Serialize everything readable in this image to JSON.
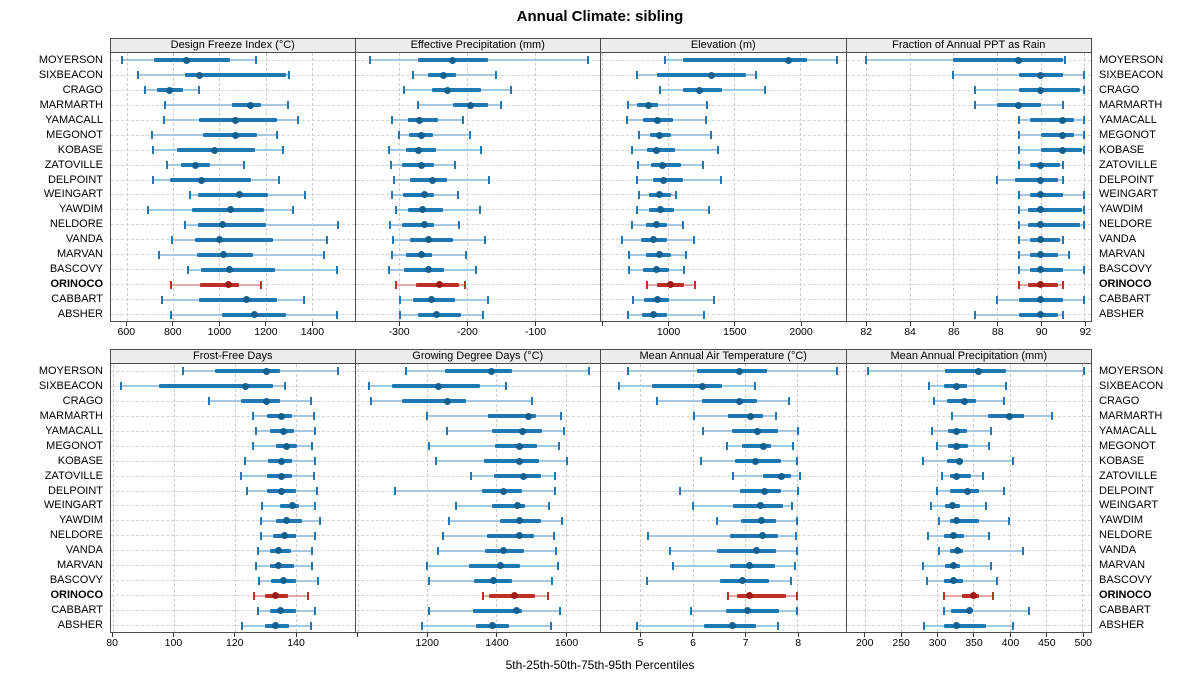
{
  "title": "Annual Climate: sibling",
  "caption": "5th-25th-50th-75th-95th Percentiles",
  "colors": {
    "blue_line": "#a3c8e0",
    "blue_bar": "#1f77b4",
    "blue_cap": "#1f77b4",
    "blue_dot": "#13608f",
    "red_line": "#e2a8a2",
    "red_bar": "#bd3029",
    "red_cap": "#bd3029",
    "red_dot": "#9c1c15",
    "header_bg": "#ececec",
    "panel_border": "#4d4d4d",
    "grid": "#cbcbcb"
  },
  "chart_data": {
    "type": "scatter",
    "variant": "percentile-interval-trellis",
    "percentiles": [
      "5th",
      "25th",
      "50th",
      "75th",
      "95th"
    ],
    "stations": [
      "MOYERSON",
      "SIXBEACON",
      "CRAGO",
      "MARMARTH",
      "YAMACALL",
      "MEGONOT",
      "KOBASE",
      "ZATOVILLE",
      "DELPOINT",
      "WEINGART",
      "YAWDIM",
      "NELDORE",
      "VANDA",
      "MARVAN",
      "BASCOVY",
      "ORINOCO",
      "CABBART",
      "ABSHER"
    ],
    "highlight_station": "ORINOCO",
    "panels": [
      {
        "title": "Design Freeze Index (°C)",
        "xlim": [
          530,
          1585
        ],
        "ticks": [
          600,
          800,
          1000,
          1200,
          1400
        ],
        "grid_ticks": [
          600,
          800,
          1000,
          1200,
          1400
        ],
        "rows": [
          [
            577,
            717,
            857,
            1046,
            1157
          ],
          [
            649,
            850,
            913,
            1289,
            1300
          ],
          [
            679,
            729,
            784,
            841,
            910
          ],
          [
            763,
            1053,
            1135,
            1180,
            1298
          ],
          [
            759,
            911,
            1070,
            1251,
            1340
          ],
          [
            706,
            928,
            1071,
            1162,
            1248
          ],
          [
            713,
            815,
            978,
            1155,
            1277
          ],
          [
            774,
            834,
            894,
            961,
            1107
          ],
          [
            710,
            784,
            923,
            1138,
            1258
          ],
          [
            872,
            909,
            1088,
            1212,
            1372
          ],
          [
            692,
            880,
            1049,
            1195,
            1319
          ],
          [
            851,
            909,
            1015,
            1202,
            1513
          ],
          [
            795,
            893,
            999,
            1233,
            1468
          ],
          [
            737,
            904,
            1018,
            1145,
            1452
          ],
          [
            862,
            921,
            1042,
            1240,
            1510
          ],
          [
            788,
            914,
            1039,
            1084,
            1178
          ],
          [
            749,
            911,
            1119,
            1251,
            1367
          ],
          [
            791,
            1011,
            1152,
            1287,
            1510
          ]
        ]
      },
      {
        "title": "Effective Precipitation (mm)",
        "xlim": [
          -364,
          -4
        ],
        "ticks": [
          -300,
          -200,
          -100
        ],
        "grid_ticks": [
          -300,
          -200,
          -100
        ],
        "rows": [
          [
            -343,
            -272,
            -221,
            -169,
            -22
          ],
          [
            -279,
            -257,
            -235,
            -216,
            -157
          ],
          [
            -292,
            -252,
            -228,
            -179,
            -135
          ],
          [
            -272,
            -221,
            -194,
            -169,
            -150
          ],
          [
            -310,
            -287,
            -270,
            -243,
            -206
          ],
          [
            -300,
            -285,
            -267,
            -250,
            -196
          ],
          [
            -314,
            -290,
            -271,
            -245,
            -179
          ],
          [
            -311,
            -295,
            -267,
            -249,
            -217
          ],
          [
            -308,
            -284,
            -250,
            -230,
            -167
          ],
          [
            -310,
            -294,
            -262,
            -248,
            -213
          ],
          [
            -305,
            -287,
            -266,
            -235,
            -181
          ],
          [
            -313,
            -295,
            -262,
            -248,
            -211
          ],
          [
            -309,
            -284,
            -257,
            -221,
            -174
          ],
          [
            -310,
            -290,
            -267,
            -252,
            -201
          ],
          [
            -315,
            -293,
            -257,
            -233,
            -186
          ],
          [
            -304,
            -275,
            -240,
            -211,
            -203
          ],
          [
            -299,
            -279,
            -252,
            -218,
            -169
          ],
          [
            -299,
            -272,
            -244,
            -208,
            -176
          ]
        ]
      },
      {
        "title": "Elevation (m)",
        "xlim": [
          490,
          2343
        ],
        "ticks": [
          1000,
          1500,
          2000
        ],
        "grid_ticks": [
          500,
          1000,
          1500,
          2000
        ],
        "rows": [
          [
            975,
            1109,
            1914,
            2048,
            2280
          ],
          [
            760,
            915,
            1328,
            1590,
            1665
          ],
          [
            937,
            1109,
            1240,
            1404,
            1732
          ],
          [
            697,
            765,
            849,
            924,
            1290
          ],
          [
            689,
            811,
            917,
            1038,
            1285
          ],
          [
            780,
            861,
            932,
            1018,
            1321
          ],
          [
            722,
            836,
            907,
            1050,
            1379
          ],
          [
            773,
            866,
            955,
            1093,
            1265
          ],
          [
            765,
            881,
            967,
            1109,
            1396
          ],
          [
            780,
            856,
            937,
            1018,
            1056
          ],
          [
            765,
            856,
            942,
            1043,
            1308
          ],
          [
            722,
            831,
            907,
            992,
            1109
          ],
          [
            646,
            790,
            891,
            992,
            1194
          ],
          [
            705,
            831,
            932,
            1018,
            1134
          ],
          [
            705,
            811,
            912,
            1008,
            1119
          ],
          [
            841,
            917,
            1018,
            1119,
            1202
          ],
          [
            730,
            816,
            917,
            1008,
            1346
          ],
          [
            697,
            798,
            891,
            992,
            1270
          ]
        ]
      },
      {
        "title": "Fraction of Annual PPT as Rain",
        "xlim": [
          81.1,
          92.3
        ],
        "ticks": [
          82,
          84,
          86,
          88,
          90,
          92
        ],
        "grid_ticks": [
          82,
          84,
          86,
          88,
          90,
          92
        ],
        "rows": [
          [
            82,
            86,
            89,
            91,
            91.1
          ],
          [
            86,
            89,
            90,
            91,
            92
          ],
          [
            87,
            89,
            90,
            91.8,
            92
          ],
          [
            87,
            88,
            89,
            90,
            91
          ],
          [
            89,
            89.5,
            91,
            91.5,
            92
          ],
          [
            89,
            90,
            91,
            91.5,
            92
          ],
          [
            89,
            90,
            91,
            91.9,
            92
          ],
          [
            89,
            89.5,
            90,
            90.9,
            91
          ],
          [
            88,
            88.8,
            90,
            90.8,
            91
          ],
          [
            89,
            89.5,
            90,
            91,
            92
          ],
          [
            89,
            89.4,
            90,
            91.9,
            92
          ],
          [
            89,
            89.4,
            90,
            91.8,
            92
          ],
          [
            89,
            89.5,
            90,
            90.9,
            91
          ],
          [
            89,
            89.5,
            90,
            90.8,
            91.3
          ],
          [
            89,
            89.5,
            90,
            91,
            92
          ],
          [
            89,
            89.4,
            90,
            90.8,
            91
          ],
          [
            88,
            89,
            90,
            91,
            92
          ],
          [
            87,
            89,
            90,
            90.8,
            91
          ]
        ]
      },
      {
        "title": "Frost-Free Days",
        "xlim": [
          79.3,
          159.4
        ],
        "ticks": [
          80,
          100,
          120,
          140
        ],
        "grid_ticks": [
          80,
          100,
          120,
          140
        ],
        "rows": [
          [
            103,
            113.5,
            130.5,
            135,
            154
          ],
          [
            82.7,
            95,
            123.5,
            132.5,
            136.5
          ],
          [
            111.5,
            122,
            130.5,
            135,
            145
          ],
          [
            126,
            130.5,
            135.5,
            139,
            146
          ],
          [
            127,
            131.5,
            136,
            139.5,
            146.5
          ],
          [
            126,
            133.5,
            137,
            140.5,
            145.5
          ],
          [
            123.5,
            131,
            135.5,
            139,
            146.5
          ],
          [
            122,
            130.5,
            135.5,
            139,
            146
          ],
          [
            124,
            130.5,
            135.5,
            140,
            147
          ],
          [
            129,
            135,
            139,
            141,
            146.5
          ],
          [
            128.5,
            133.5,
            137,
            142,
            148
          ],
          [
            128.5,
            132.5,
            136.5,
            140,
            146.5
          ],
          [
            127.5,
            131.5,
            134.5,
            138.5,
            145.5
          ],
          [
            127,
            131.5,
            134.5,
            139.5,
            145.5
          ],
          [
            128,
            132,
            136,
            140,
            147.5
          ],
          [
            126.5,
            130,
            133.5,
            137.5,
            144
          ],
          [
            127.5,
            131.5,
            135,
            140,
            146.5
          ],
          [
            122.5,
            130,
            133.5,
            138,
            145
          ]
        ]
      },
      {
        "title": "Growing Degree Days (°C)",
        "xlim": [
          994,
          1699
        ],
        "ticks": [
          1200,
          1400,
          1600
        ],
        "grid_ticks": [
          1000,
          1200,
          1400,
          1600
        ],
        "rows": [
          [
            1139,
            1253,
            1386,
            1446,
            1666
          ],
          [
            1033,
            1099,
            1234,
            1354,
            1428
          ],
          [
            1039,
            1128,
            1258,
            1313,
            1502
          ],
          [
            1200,
            1376,
            1492,
            1515,
            1586
          ],
          [
            1258,
            1388,
            1475,
            1531,
            1595
          ],
          [
            1205,
            1396,
            1468,
            1518,
            1581
          ],
          [
            1226,
            1364,
            1468,
            1523,
            1605
          ],
          [
            1328,
            1393,
            1477,
            1528,
            1569
          ],
          [
            1108,
            1359,
            1420,
            1473,
            1569
          ],
          [
            1284,
            1388,
            1462,
            1484,
            1552
          ],
          [
            1265,
            1412,
            1468,
            1528,
            1588
          ],
          [
            1245,
            1373,
            1468,
            1508,
            1566
          ],
          [
            1232,
            1367,
            1422,
            1480,
            1573
          ],
          [
            1200,
            1322,
            1412,
            1467,
            1579
          ],
          [
            1207,
            1335,
            1393,
            1444,
            1560
          ],
          [
            1361,
            1378,
            1453,
            1511,
            1550
          ],
          [
            1207,
            1332,
            1457,
            1473,
            1583
          ],
          [
            1187,
            1342,
            1390,
            1436,
            1557
          ]
        ]
      },
      {
        "title": "Mean Annual Air Temperature (°C)",
        "xlim": [
          4.25,
          8.92
        ],
        "ticks": [
          5,
          6,
          7,
          8
        ],
        "grid_ticks": [
          5,
          6,
          7,
          8
        ],
        "rows": [
          [
            4.77,
            6.09,
            6.9,
            7.42,
            8.75
          ],
          [
            4.59,
            5.22,
            6.19,
            6.57,
            7.19
          ],
          [
            5.32,
            6.17,
            6.89,
            7.23,
            7.84
          ],
          [
            6.03,
            6.68,
            7.11,
            7.35,
            7.6
          ],
          [
            6.19,
            6.76,
            7.24,
            7.63,
            8.01
          ],
          [
            6.65,
            6.95,
            7.35,
            7.5,
            7.92
          ],
          [
            6.16,
            6.81,
            7.21,
            7.68,
            8.0
          ],
          [
            6.78,
            7.35,
            7.69,
            7.87,
            8.06
          ],
          [
            5.76,
            6.9,
            7.37,
            7.69,
            8.01
          ],
          [
            6.01,
            6.78,
            7.3,
            7.73,
            7.9
          ],
          [
            6.46,
            6.93,
            7.31,
            7.6,
            7.99
          ],
          [
            5.14,
            6.71,
            7.33,
            7.63,
            7.98
          ],
          [
            5.56,
            6.46,
            7.22,
            7.6,
            7.99
          ],
          [
            5.62,
            6.71,
            7.08,
            7.57,
            7.95
          ],
          [
            5.13,
            6.52,
            6.95,
            7.46,
            7.87
          ],
          [
            6.68,
            6.84,
            7.08,
            7.78,
            8.0
          ],
          [
            5.96,
            6.64,
            7.05,
            7.65,
            7.99
          ],
          [
            4.94,
            6.22,
            6.76,
            7.21,
            7.63
          ]
        ]
      },
      {
        "title": "Mean Annual Precipitation (mm)",
        "xlim": [
          175,
          512
        ],
        "ticks": [
          200,
          250,
          300,
          350,
          400,
          450,
          500
        ],
        "grid_ticks": [
          200,
          250,
          300,
          350,
          400,
          450,
          500
        ],
        "rows": [
          [
            204,
            311,
            357,
            395,
            503
          ],
          [
            289,
            309,
            327,
            341,
            395
          ],
          [
            296,
            313,
            338,
            354,
            392
          ],
          [
            320,
            370,
            400,
            420,
            458
          ],
          [
            293,
            315,
            326,
            341,
            374
          ],
          [
            300,
            315,
            326,
            343,
            371
          ],
          [
            281,
            313,
            331,
            336,
            404
          ],
          [
            306,
            317,
            326,
            347,
            363
          ],
          [
            300,
            318,
            342,
            357,
            392
          ],
          [
            291,
            311,
            321,
            332,
            367
          ],
          [
            302,
            317,
            326,
            357,
            399
          ],
          [
            288,
            310,
            322,
            337,
            372
          ],
          [
            302,
            318,
            328,
            336,
            418
          ],
          [
            280,
            311,
            323,
            332,
            374
          ],
          [
            286,
            310,
            323,
            335,
            383
          ],
          [
            310,
            334,
            350,
            358,
            377
          ],
          [
            310,
            319,
            345,
            347,
            426
          ],
          [
            282,
            310,
            326,
            367,
            405
          ]
        ]
      }
    ]
  }
}
